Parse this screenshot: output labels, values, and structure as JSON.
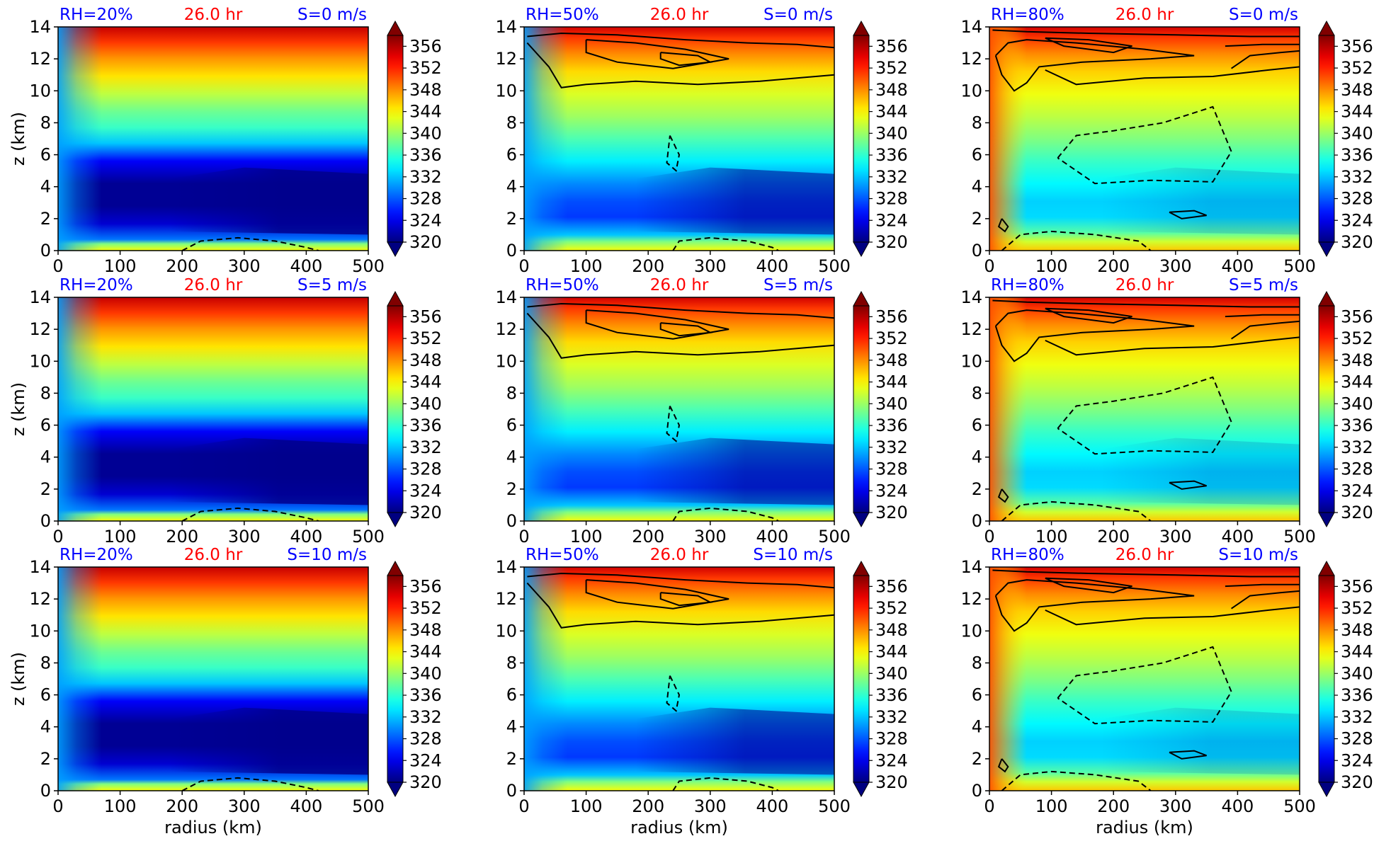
{
  "figure": {
    "colormap": "jet",
    "colors": {
      "title_blue": "#0000ff",
      "title_red": "#ff0000",
      "contour": "#000000"
    },
    "row_shear": [
      "S=0 m/s",
      "S=5 m/s",
      "S=10 m/s"
    ],
    "column_rh": [
      "RH=20%",
      "RH=50%",
      "RH=80%"
    ],
    "time_label": "26.0 hr"
  },
  "chart_data": [
    {
      "type": "heatmap",
      "title": [
        "RH=20%",
        "26.0 hr",
        "S=0 m/s"
      ],
      "rh": 20,
      "shear": 0,
      "xlabel": "",
      "ylabel": "z (km)",
      "xlim": [
        0,
        500
      ],
      "ylim": [
        0,
        14
      ],
      "xticks": [
        "0",
        "100",
        "200",
        "300",
        "400",
        "500"
      ],
      "yticks": [
        "0",
        "2",
        "4",
        "6",
        "8",
        "10",
        "12",
        "14"
      ],
      "colorbar": {
        "ticks": [
          "320",
          "324",
          "328",
          "332",
          "336",
          "340",
          "344",
          "348",
          "352",
          "356"
        ],
        "range": [
          320,
          358
        ],
        "extend": "both"
      }
    },
    {
      "type": "heatmap",
      "title": [
        "RH=50%",
        "26.0 hr",
        "S=0 m/s"
      ],
      "rh": 50,
      "shear": 0,
      "xlabel": "",
      "ylabel": "",
      "xlim": [
        0,
        500
      ],
      "ylim": [
        0,
        14
      ],
      "xticks": [
        "0",
        "100",
        "200",
        "300",
        "400",
        "500"
      ],
      "yticks": [
        "0",
        "2",
        "4",
        "6",
        "8",
        "10",
        "12",
        "14"
      ],
      "colorbar": {
        "ticks": [
          "320",
          "324",
          "328",
          "332",
          "336",
          "340",
          "344",
          "348",
          "352",
          "356"
        ],
        "range": [
          320,
          358
        ],
        "extend": "both"
      }
    },
    {
      "type": "heatmap",
      "title": [
        "RH=80%",
        "26.0 hr",
        "S=0 m/s"
      ],
      "rh": 80,
      "shear": 0,
      "xlabel": "",
      "ylabel": "",
      "xlim": [
        0,
        500
      ],
      "ylim": [
        0,
        14
      ],
      "xticks": [
        "0",
        "100",
        "200",
        "300",
        "400",
        "500"
      ],
      "yticks": [
        "0",
        "2",
        "4",
        "6",
        "8",
        "10",
        "12",
        "14"
      ],
      "colorbar": {
        "ticks": [
          "320",
          "324",
          "328",
          "332",
          "336",
          "340",
          "344",
          "348",
          "352",
          "356"
        ],
        "range": [
          320,
          358
        ],
        "extend": "both"
      }
    },
    {
      "type": "heatmap",
      "title": [
        "RH=20%",
        "26.0 hr",
        "S=5 m/s"
      ],
      "rh": 20,
      "shear": 5,
      "xlabel": "",
      "ylabel": "z (km)",
      "xlim": [
        0,
        500
      ],
      "ylim": [
        0,
        14
      ],
      "xticks": [
        "0",
        "100",
        "200",
        "300",
        "400",
        "500"
      ],
      "yticks": [
        "0",
        "2",
        "4",
        "6",
        "8",
        "10",
        "12",
        "14"
      ],
      "colorbar": {
        "ticks": [
          "320",
          "324",
          "328",
          "332",
          "336",
          "340",
          "344",
          "348",
          "352",
          "356"
        ],
        "range": [
          320,
          358
        ],
        "extend": "both"
      }
    },
    {
      "type": "heatmap",
      "title": [
        "RH=50%",
        "26.0 hr",
        "S=5 m/s"
      ],
      "rh": 50,
      "shear": 5,
      "xlabel": "",
      "ylabel": "",
      "xlim": [
        0,
        500
      ],
      "ylim": [
        0,
        14
      ],
      "xticks": [
        "0",
        "100",
        "200",
        "300",
        "400",
        "500"
      ],
      "yticks": [
        "0",
        "2",
        "4",
        "6",
        "8",
        "10",
        "12",
        "14"
      ],
      "colorbar": {
        "ticks": [
          "320",
          "324",
          "328",
          "332",
          "336",
          "340",
          "344",
          "348",
          "352",
          "356"
        ],
        "range": [
          320,
          358
        ],
        "extend": "both"
      }
    },
    {
      "type": "heatmap",
      "title": [
        "RH=80%",
        "26.0 hr",
        "S=5 m/s"
      ],
      "rh": 80,
      "shear": 5,
      "xlabel": "",
      "ylabel": "",
      "xlim": [
        0,
        500
      ],
      "ylim": [
        0,
        14
      ],
      "xticks": [
        "0",
        "100",
        "200",
        "300",
        "400",
        "500"
      ],
      "yticks": [
        "0",
        "2",
        "4",
        "6",
        "8",
        "10",
        "12",
        "14"
      ],
      "colorbar": {
        "ticks": [
          "320",
          "324",
          "328",
          "332",
          "336",
          "340",
          "344",
          "348",
          "352",
          "356"
        ],
        "range": [
          320,
          358
        ],
        "extend": "both"
      }
    },
    {
      "type": "heatmap",
      "title": [
        "RH=20%",
        "26.0 hr",
        "S=10 m/s"
      ],
      "rh": 20,
      "shear": 10,
      "xlabel": "radius (km)",
      "ylabel": "z (km)",
      "xlim": [
        0,
        500
      ],
      "ylim": [
        0,
        14
      ],
      "xticks": [
        "0",
        "100",
        "200",
        "300",
        "400",
        "500"
      ],
      "yticks": [
        "0",
        "2",
        "4",
        "6",
        "8",
        "10",
        "12",
        "14"
      ],
      "colorbar": {
        "ticks": [
          "320",
          "324",
          "328",
          "332",
          "336",
          "340",
          "344",
          "348",
          "352",
          "356"
        ],
        "range": [
          320,
          358
        ],
        "extend": "both"
      }
    },
    {
      "type": "heatmap",
      "title": [
        "RH=50%",
        "26.0 hr",
        "S=10 m/s"
      ],
      "rh": 50,
      "shear": 10,
      "xlabel": "radius (km)",
      "ylabel": "",
      "xlim": [
        0,
        500
      ],
      "ylim": [
        0,
        14
      ],
      "xticks": [
        "0",
        "100",
        "200",
        "300",
        "400",
        "500"
      ],
      "yticks": [
        "0",
        "2",
        "4",
        "6",
        "8",
        "10",
        "12",
        "14"
      ],
      "colorbar": {
        "ticks": [
          "320",
          "324",
          "328",
          "332",
          "336",
          "340",
          "344",
          "348",
          "352",
          "356"
        ],
        "range": [
          320,
          358
        ],
        "extend": "both"
      }
    },
    {
      "type": "heatmap",
      "title": [
        "RH=80%",
        "26.0 hr",
        "S=10 m/s"
      ],
      "rh": 80,
      "shear": 10,
      "xlabel": "radius (km)",
      "ylabel": "",
      "xlim": [
        0,
        500
      ],
      "ylim": [
        0,
        14
      ],
      "xticks": [
        "0",
        "100",
        "200",
        "300",
        "400",
        "500"
      ],
      "yticks": [
        "0",
        "2",
        "4",
        "6",
        "8",
        "10",
        "12",
        "14"
      ],
      "colorbar": {
        "ticks": [
          "320",
          "324",
          "328",
          "332",
          "336",
          "340",
          "344",
          "348",
          "352",
          "356"
        ],
        "range": [
          320,
          358
        ],
        "extend": "both"
      }
    }
  ]
}
